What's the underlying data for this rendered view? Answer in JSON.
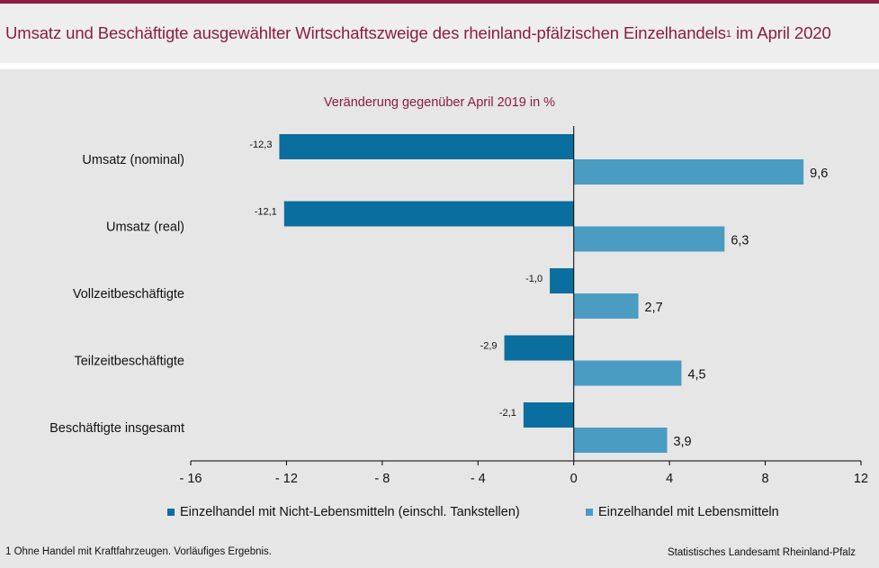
{
  "title": {
    "main": "Umsatz und Beschäftigte ausgewählter Wirtschaftszweige des rheinland-pfälzischen Einzelhandels",
    "footnote_marker": "1",
    "suffix": " im April 2020"
  },
  "subtitle": "Veränderung gegenüber April 2019 in %",
  "footnote": "1 Ohne Handel mit Kraftfahrzeugen. Vorläufiges Ergebnis.",
  "source": "Statistisches Landesamt Rheinland-Pfalz",
  "colors": {
    "brand": "#8c1d40",
    "series_dark": "#0a6e9e",
    "series_light": "#4a9cc3"
  },
  "chart_data": {
    "type": "bar",
    "orientation": "horizontal",
    "categories": [
      "Umsatz (nominal)",
      "Umsatz (real)",
      "Vollzeitbeschäftigte",
      "Teilzeitbeschäftigte",
      "Beschäftigte insgesamt"
    ],
    "series": [
      {
        "name": "Einzelhandel mit Nicht-Lebensmitteln (einschl. Tankstellen)",
        "values": [
          -12.3,
          -12.1,
          -1.0,
          -2.9,
          -2.1
        ],
        "labels": [
          "-12,3",
          "-12,1",
          "-1,0",
          "-2,9",
          "-2,1"
        ],
        "color": "#0a6e9e"
      },
      {
        "name": "Einzelhandel mit Lebensmitteln",
        "values": [
          9.6,
          6.3,
          2.7,
          4.5,
          3.9
        ],
        "labels": [
          "9,6",
          "6,3",
          "2,7",
          "4,5",
          "3,9"
        ],
        "color": "#4a9cc3"
      }
    ],
    "xlim": [
      -16,
      12
    ],
    "xticks": [
      -16,
      -12,
      -8,
      -4,
      0,
      4,
      8,
      12
    ],
    "xtick_labels": [
      "- 16",
      "- 12",
      "- 8",
      "- 4",
      "0",
      "4",
      "8",
      "12"
    ],
    "legend_position": "bottom",
    "grid": false
  }
}
